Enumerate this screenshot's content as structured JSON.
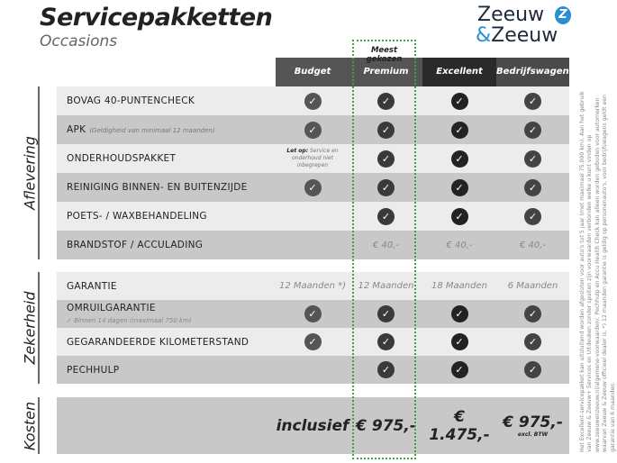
{
  "header": {
    "title": "Servicepakketten",
    "subtitle": "Occasions",
    "logo": {
      "line1": "Zeeuw",
      "line2_amp": "&",
      "line2": "Zeeuw",
      "mark": "Z"
    }
  },
  "popular_label": "Meest gekozen",
  "columns": [
    {
      "label": "Budget",
      "bg": "#555555",
      "check": "#555555"
    },
    {
      "label": "Premium",
      "bg": "#555555",
      "check": "#3a3a3a"
    },
    {
      "label": "Excellent",
      "bg": "#2a2a2a",
      "check": "#222222"
    },
    {
      "label": "Bedrijfswagens",
      "bg": "#4a4a4a",
      "check": "#444444"
    }
  ],
  "sections": [
    {
      "name": "Aflevering",
      "rows": [
        {
          "label": "BOVAG 40-PUNTENCHECK",
          "cells": [
            "check",
            "check",
            "check",
            "check"
          ]
        },
        {
          "label": "APK",
          "note": "(Geldigheid van minimaal 12 maanden)",
          "cells": [
            "check",
            "check",
            "check",
            "check"
          ]
        },
        {
          "label": "ONDERHOUDSPAKKET",
          "cells": [
            "letop",
            "check",
            "check",
            "check"
          ]
        },
        {
          "label": "REINIGING BINNEN- EN BUITENZIJDE",
          "cells": [
            "check",
            "check",
            "check",
            "check"
          ]
        },
        {
          "label": "POETS- / WAXBEHANDELING",
          "cells": [
            "",
            "check",
            "check",
            "check"
          ]
        },
        {
          "label": "BRANDSTOF / ACCULADING",
          "cells": [
            "",
            "€ 40,-",
            "€ 40,-",
            "€ 40,-"
          ]
        }
      ]
    },
    {
      "name": "Zekerheid",
      "rows": [
        {
          "label": "GARANTIE",
          "cells": [
            "12 Maanden *)",
            "12 Maanden",
            "18 Maanden",
            "6 Maanden"
          ]
        },
        {
          "label": "OMRUILGARANTIE",
          "sub": "✓   Binnen 14 dagen (maximaal 750 km)",
          "cells": [
            "check",
            "check",
            "check",
            "check"
          ]
        },
        {
          "label": "GEGARANDEERDE KILOMETERSTAND",
          "cells": [
            "check",
            "check",
            "check",
            "check"
          ]
        },
        {
          "label": "PECHHULP",
          "cells": [
            "",
            "check",
            "check",
            "check"
          ]
        }
      ]
    },
    {
      "name": "Kosten",
      "prices": [
        "inclusief",
        "€ 975,-",
        "€ 1.475,-",
        "€ 975,-"
      ],
      "price_note": "excl. BTW"
    }
  ],
  "let_op": {
    "bold": "Let op:",
    "text": " Service en onderhoud niet inbegrepen"
  },
  "footnote": "Het Excellent-servicepakket kan uitsluitend worden afgesloten voor auto's tot 5 jaar (met maximaal 75.000 km). Aan het gebruik van Zeeuw & Zeeuw+ Services en Uitdeuken zonder spuiten zijn voorwaarden verbonden welke u kunt vinden op www.zeeuwenzeeuw.nl/algemene-voorwaarden/. Pechhulp en Accu Health Check kan alleen worden geboden voor automerken waarvan Zeeuw & Zeeuw officieel dealer is. *) 12 maanden garantie is geldig op personenauto's, voor bedrijfswagens geldt een garantie van 6 maanden."
}
